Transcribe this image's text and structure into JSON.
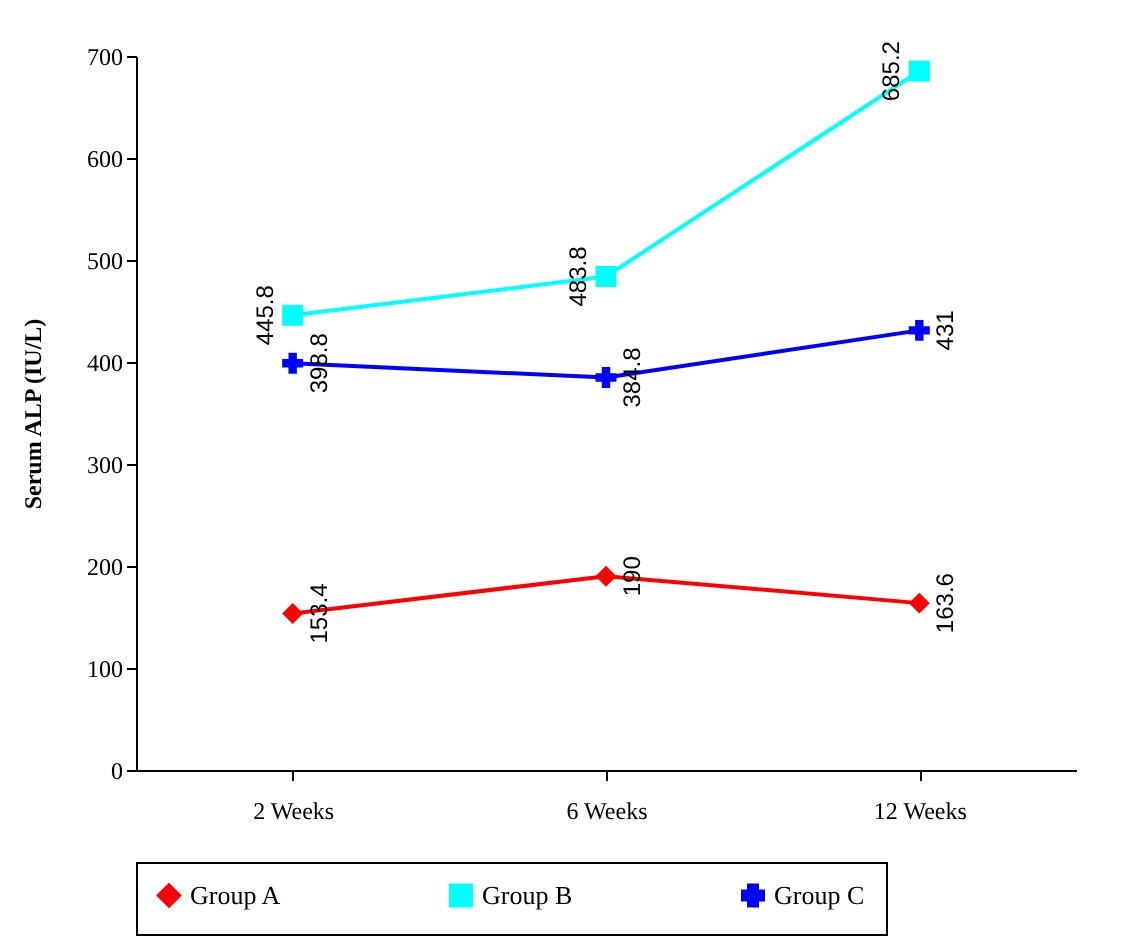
{
  "chart_data": {
    "type": "line",
    "ylabel": "Serum ALP (IU/L)",
    "categories": [
      "2 Weeks",
      "6 Weeks",
      "12 Weeks"
    ],
    "series": [
      {
        "name": "Group A",
        "color": "#ff0000",
        "marker": "diamond",
        "values": [
          153.4,
          190,
          163.6
        ]
      },
      {
        "name": "Group B",
        "color": "#00ffff",
        "marker": "square",
        "values": [
          445.8,
          483.8,
          685.2
        ]
      },
      {
        "name": "Group C",
        "color": "#0000ff",
        "marker": "cross",
        "values": [
          398.8,
          384.8,
          431
        ]
      }
    ],
    "ylim": [
      0,
      700
    ],
    "yticks": [
      0,
      100,
      200,
      300,
      400,
      500,
      600,
      700
    ],
    "grid": false,
    "legend": "bottom",
    "data_labels": true
  }
}
